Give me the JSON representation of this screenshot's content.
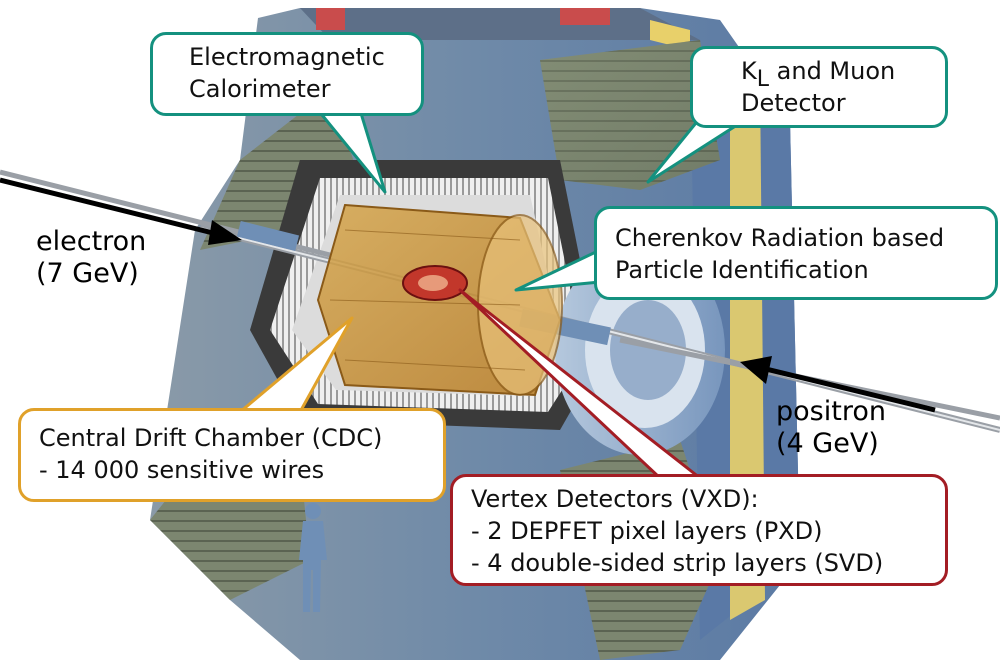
{
  "colors": {
    "teal": "#14917f",
    "orange": "#e0a12a",
    "red": "#a31d24",
    "outer_blue": "#6f8fb6",
    "inner_gold": "#c98a2a"
  },
  "labels": {
    "ecl": {
      "line1": "Electromagnetic",
      "line2": "Calorimeter"
    },
    "klm": {
      "k": "K",
      "sub": "L",
      "rest": " and Muon",
      "line2": "Detector"
    },
    "pid": {
      "line1": "Cherenkov Radiation based",
      "line2": "Particle Identification"
    },
    "cdc": {
      "line1": "Central Drift Chamber  (CDC)",
      "line2": "- 14 000 sensitive wires"
    },
    "vxd": {
      "line1": "Vertex Detectors (VXD):",
      "line2": "- 2 DEPFET pixel layers (PXD)",
      "line3": "- 4 double-sided strip layers (SVD)"
    },
    "electron": {
      "line1": "electron",
      "line2": "(7 GeV)"
    },
    "positron": {
      "line1": "positron",
      "line2": "(4 GeV)"
    }
  },
  "icons": {
    "human": "person-silhouette-icon",
    "beam_in": "arrow-right-icon",
    "beam_out": "arrow-left-icon"
  }
}
